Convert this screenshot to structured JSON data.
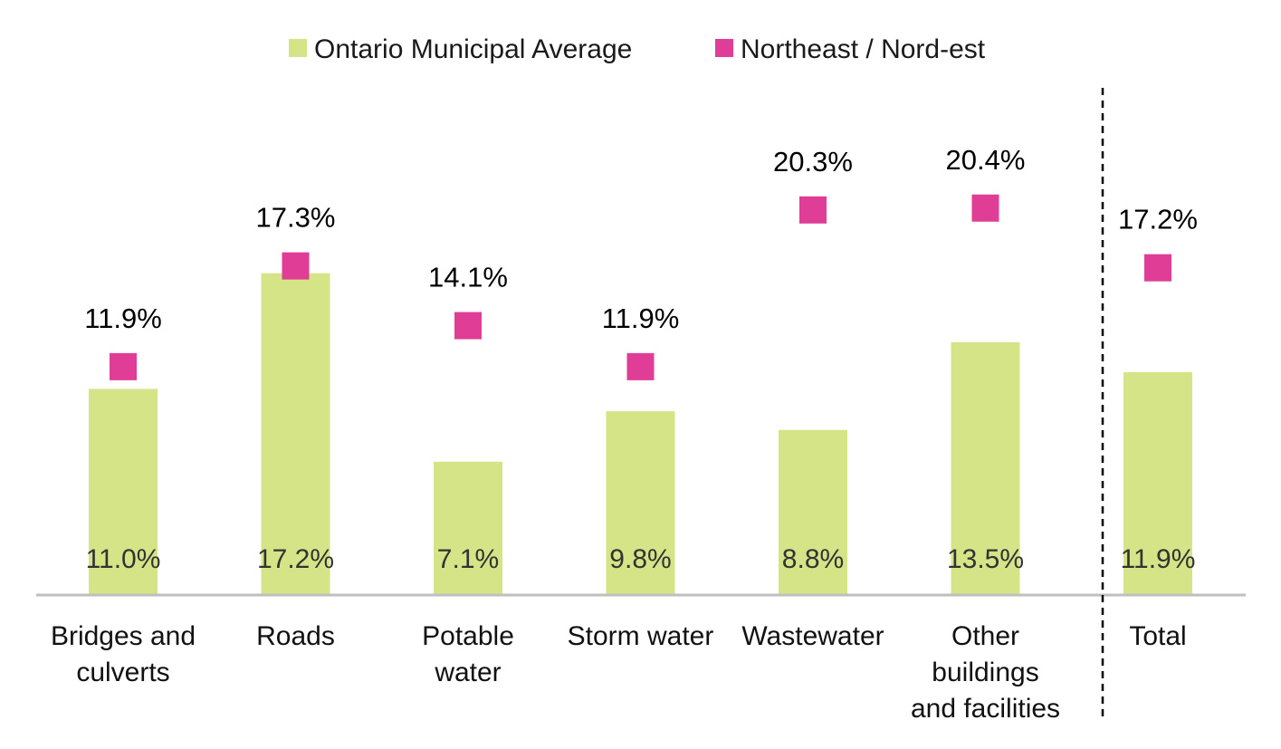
{
  "chart_data": {
    "type": "bar",
    "categories": [
      [
        "Bridges and",
        "culverts"
      ],
      [
        "Roads"
      ],
      [
        "Potable",
        "water"
      ],
      [
        "Storm water"
      ],
      [
        "Wastewater"
      ],
      [
        "Other",
        "buildings",
        "and facilities"
      ],
      [
        "Total"
      ]
    ],
    "series": [
      {
        "name": "Ontario Municipal Average",
        "kind": "bar",
        "values": [
          11.0,
          17.2,
          7.1,
          9.8,
          8.8,
          13.5,
          11.9
        ],
        "labels": [
          "11.0%",
          "17.2%",
          "7.1%",
          "9.8%",
          "8.8%",
          "13.5%",
          "11.9%"
        ],
        "color": "#d4e487"
      },
      {
        "name": "Northeast / Nord-est",
        "kind": "marker",
        "values": [
          11.9,
          17.3,
          14.1,
          11.9,
          20.3,
          20.4,
          17.2
        ],
        "labels": [
          "11.9%",
          "17.3%",
          "14.1%",
          "11.9%",
          "20.3%",
          "20.4%",
          "17.2%"
        ],
        "color": "#e03e96"
      }
    ],
    "ylim": [
      0,
      32
    ],
    "grid": false,
    "legend_position": "top-center",
    "separator_before": "Total",
    "axis_color": "#bfbfbf"
  }
}
